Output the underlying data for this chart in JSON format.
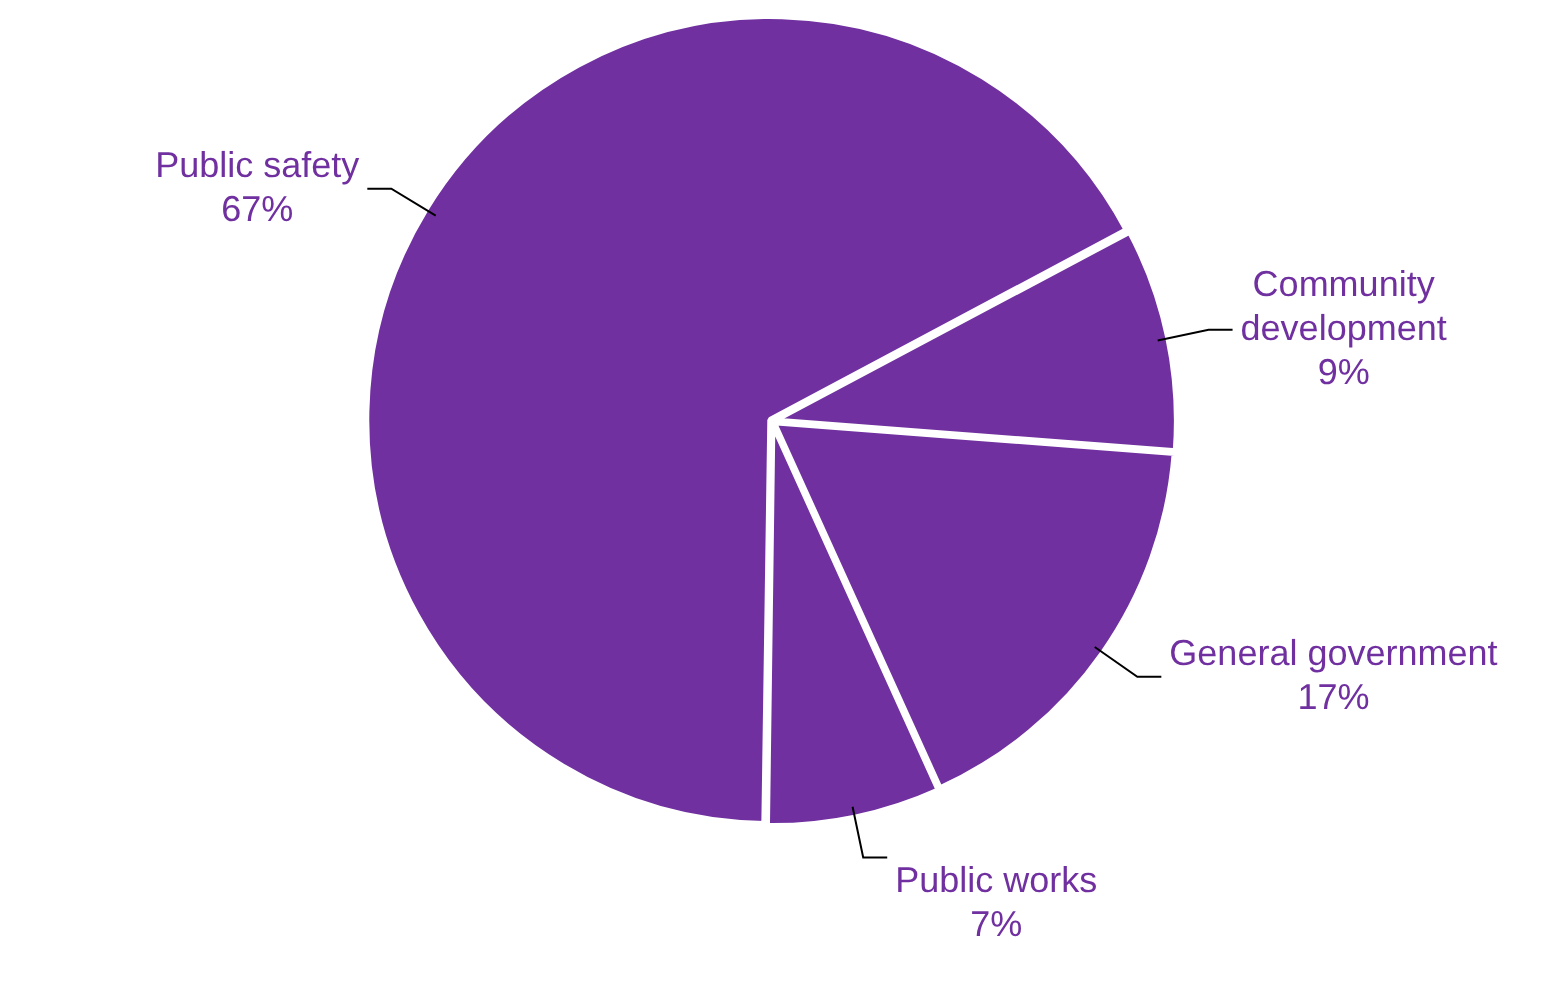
{
  "chart_data": {
    "type": "pie",
    "categories": [
      "Community development",
      "General government",
      "Public works",
      "Public safety"
    ],
    "values": [
      9,
      17,
      7,
      67
    ],
    "colors": [
      "#7030a0",
      "#7030a0",
      "#7030a0",
      "#7030a0"
    ],
    "value_labels": [
      "9%",
      "17%",
      "7%",
      "67%"
    ],
    "legend": false
  }
}
